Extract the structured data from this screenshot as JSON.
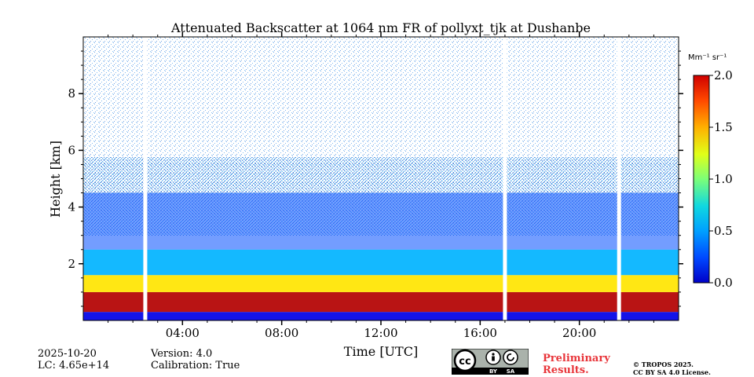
{
  "chart_data": {
    "type": "heatmap",
    "title": "Attenuated Backscatter at 1064 nm FR of pollyxt_tjk at Dushanbe",
    "xlabel": "Time [UTC]",
    "ylabel": "Height [km]",
    "x_ticks": [
      "04:00",
      "08:00",
      "12:00",
      "16:00",
      "20:00"
    ],
    "x_tick_hours": [
      4,
      8,
      12,
      16,
      20
    ],
    "xlim_hours": [
      0,
      24
    ],
    "y_ticks": [
      2,
      4,
      6,
      8
    ],
    "ylim": [
      0,
      10
    ],
    "colorbar": {
      "label": "Mm⁻¹ sr⁻¹",
      "ticks": [
        "0.0",
        "0.5",
        "1.0",
        "1.5",
        "2.0"
      ],
      "tick_values": [
        0.0,
        0.5,
        1.0,
        1.5,
        2.0
      ],
      "range": [
        0.0,
        2.0
      ],
      "colormap": "jet"
    },
    "data_gaps_hours": [
      2.5,
      17.0,
      21.6
    ],
    "layers": [
      {
        "height_km": [
          0.0,
          0.3
        ],
        "value": 0.2
      },
      {
        "height_km": [
          0.3,
          1.0
        ],
        "value": 1.9
      },
      {
        "height_km": [
          1.0,
          1.6
        ],
        "value": 1.3
      },
      {
        "height_km": [
          1.6,
          2.5
        ],
        "value": 0.6
      },
      {
        "height_km": [
          2.5,
          4.5
        ],
        "value": 0.4
      }
    ]
  },
  "footer": {
    "date": "2025-10-20",
    "lc": "LC: 4.65e+14",
    "version": "Version: 4.0",
    "calibration": "Calibration: True",
    "preliminary_line1": "Preliminary",
    "preliminary_line2": "Results.",
    "copyright_line1": "© TROPOS 2025.",
    "copyright_line2": "CC BY SA 4.0 License.",
    "license_badge": "cc-by-sa-icon",
    "badge_by": "BY",
    "badge_sa": "SA"
  },
  "colors": {
    "preliminary": "#e8353a"
  }
}
